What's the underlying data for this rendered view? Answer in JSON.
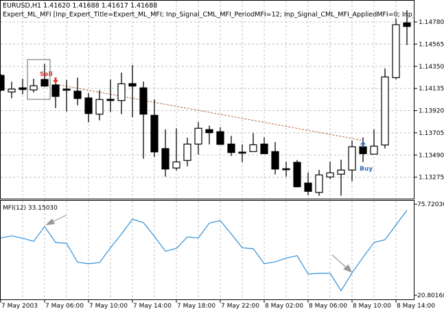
{
  "header": {
    "symbol_line": "EURUSD,H1  1.41620 1.41688 1.41617 1.41688",
    "expert_line": "Expert_ML_MFI [Inp_Expert_Title=Expert_ML_MFI; Inp_Signal_CML_MFI_PeriodMFI=12; Inp_Signal_CML_MFI_AppliedMFI=0; Inp_Signal_C"
  },
  "colors": {
    "up_body": "#ffffff",
    "down_body": "#000000",
    "grid": "#c0c0c0",
    "mfi_line": "#2f8fd6",
    "sell": "#e03a2a",
    "buy": "#2f6fb5",
    "trend": "#b5653a",
    "pattern_arrow": "#999999"
  },
  "chart_data": [
    {
      "type": "candlestick",
      "symbol": "EURUSD",
      "timeframe": "H1",
      "grid": true,
      "y_ticks": [
        "1.14780",
        "1.14565",
        "1.14350",
        "1.14135",
        "1.13920",
        "1.13705",
        "1.13490",
        "1.13275"
      ],
      "times": [
        "7 May 02:00",
        "7 May 03:00",
        "7 May 04:00",
        "7 May 05:00",
        "7 May 06:00",
        "7 May 07:00",
        "7 May 08:00",
        "7 May 09:00",
        "7 May 10:00",
        "7 May 11:00",
        "7 May 12:00",
        "7 May 13:00",
        "7 May 14:00",
        "7 May 15:00",
        "7 May 16:00",
        "7 May 17:00",
        "7 May 18:00",
        "7 May 19:00",
        "7 May 20:00",
        "7 May 21:00",
        "7 May 22:00",
        "7 May 23:00",
        "8 May 00:00",
        "8 May 01:00",
        "8 May 02:00",
        "8 May 03:00",
        "8 May 04:00",
        "8 May 05:00",
        "8 May 06:00",
        "8 May 07:00",
        "8 May 08:00",
        "8 May 09:00",
        "8 May 10:00",
        "8 May 11:00",
        "8 May 12:00",
        "8 May 13:00",
        "8 May 14:00",
        "8 May 15:00"
      ],
      "ohlc": [
        [
          1.14262,
          1.14275,
          1.14109,
          1.14118
        ],
        [
          1.14101,
          1.142,
          1.14041,
          1.14129
        ],
        [
          1.14141,
          1.14229,
          1.14078,
          1.14125
        ],
        [
          1.14121,
          1.14229,
          1.14096,
          1.14161
        ],
        [
          1.14222,
          1.14373,
          1.14151,
          1.14158
        ],
        [
          1.14169,
          1.14184,
          1.13945,
          1.14058
        ],
        [
          1.14129,
          1.14218,
          1.13912,
          1.14118
        ],
        [
          1.14109,
          1.1424,
          1.13972,
          1.14038
        ],
        [
          1.14043,
          1.14089,
          1.13806,
          1.13892
        ],
        [
          1.13886,
          1.14118,
          1.13826,
          1.14028
        ],
        [
          1.1403,
          1.14222,
          1.13908,
          1.14018
        ],
        [
          1.14018,
          1.14289,
          1.13886,
          1.1418
        ],
        [
          1.14182,
          1.14362,
          1.13855,
          1.14158
        ],
        [
          1.14141,
          1.14202,
          1.13454,
          1.13886
        ],
        [
          1.13875,
          1.1403,
          1.13472,
          1.1352
        ],
        [
          1.13552,
          1.13738,
          1.13281,
          1.13354
        ],
        [
          1.13364,
          1.13749,
          1.13339,
          1.13423
        ],
        [
          1.13437,
          1.13658,
          1.13381,
          1.13596
        ],
        [
          1.13596,
          1.13809,
          1.13494,
          1.13749
        ],
        [
          1.13736,
          1.13775,
          1.13593,
          1.13706
        ],
        [
          1.13716,
          1.13759,
          1.13591,
          1.13593
        ],
        [
          1.13596,
          1.13676,
          1.13481,
          1.13514
        ],
        [
          1.13518,
          1.13593,
          1.13421,
          1.13516
        ],
        [
          1.13523,
          1.13702,
          1.13523,
          1.13589
        ],
        [
          1.13596,
          1.1366,
          1.13503,
          1.13503
        ],
        [
          1.13523,
          1.13616,
          1.13301,
          1.13354
        ],
        [
          1.13357,
          1.13425,
          1.13281,
          1.13356
        ],
        [
          1.13419,
          1.13441,
          1.13178,
          1.13182
        ],
        [
          1.13218,
          1.13321,
          1.131,
          1.13138
        ],
        [
          1.13127,
          1.13346,
          1.13095,
          1.13297
        ],
        [
          1.13277,
          1.13425,
          1.13257,
          1.13317
        ],
        [
          1.13304,
          1.13445,
          1.13095,
          1.13344
        ],
        [
          1.13344,
          1.13631,
          1.13235,
          1.1357
        ],
        [
          1.1357,
          1.1366,
          1.13421,
          1.13503
        ],
        [
          1.13498,
          1.13738,
          1.13498,
          1.13576
        ],
        [
          1.13587,
          1.14329,
          1.13554,
          1.14247
        ],
        [
          1.1424,
          1.14813,
          1.14224,
          1.14753
        ],
        [
          1.14771,
          1.14893,
          1.14556,
          1.14736
        ]
      ],
      "signals": [
        {
          "label": "Sell",
          "time": "7 May 07:00",
          "type": "sell"
        },
        {
          "label": "Buy",
          "time": "8 May 11:00",
          "type": "buy"
        }
      ]
    },
    {
      "type": "line",
      "title": "MFI(12) 33.15030",
      "y_ticks": [
        "75.72030",
        "20.80168"
      ],
      "ylim": [
        20.80168,
        75.7203
      ],
      "grid": true,
      "values": [
        55.35,
        56.59,
        55.21,
        53.28,
        62.23,
        52.59,
        52.04,
        40.76,
        39.79,
        40.48,
        49.43,
        57.69,
        66.64,
        64.57,
        56.31,
        47.36,
        49.02,
        55.9,
        55.35,
        64.3,
        65.81,
        57.69,
        49.43,
        48.88,
        39.79,
        40.89,
        43.23,
        44.61,
        33.6,
        34.01,
        34.01,
        23.55,
        34.29,
        43.65,
        52.59,
        54.25,
        63.19,
        72.0
      ]
    }
  ],
  "time_axis": [
    "7 May 2003",
    "7 May 06:00",
    "7 May 10:00",
    "7 May 14:00",
    "7 May 18:00",
    "7 May 22:00",
    "8 May 02:00",
    "8 May 06:00",
    "8 May 10:00",
    "8 May 14:00"
  ]
}
